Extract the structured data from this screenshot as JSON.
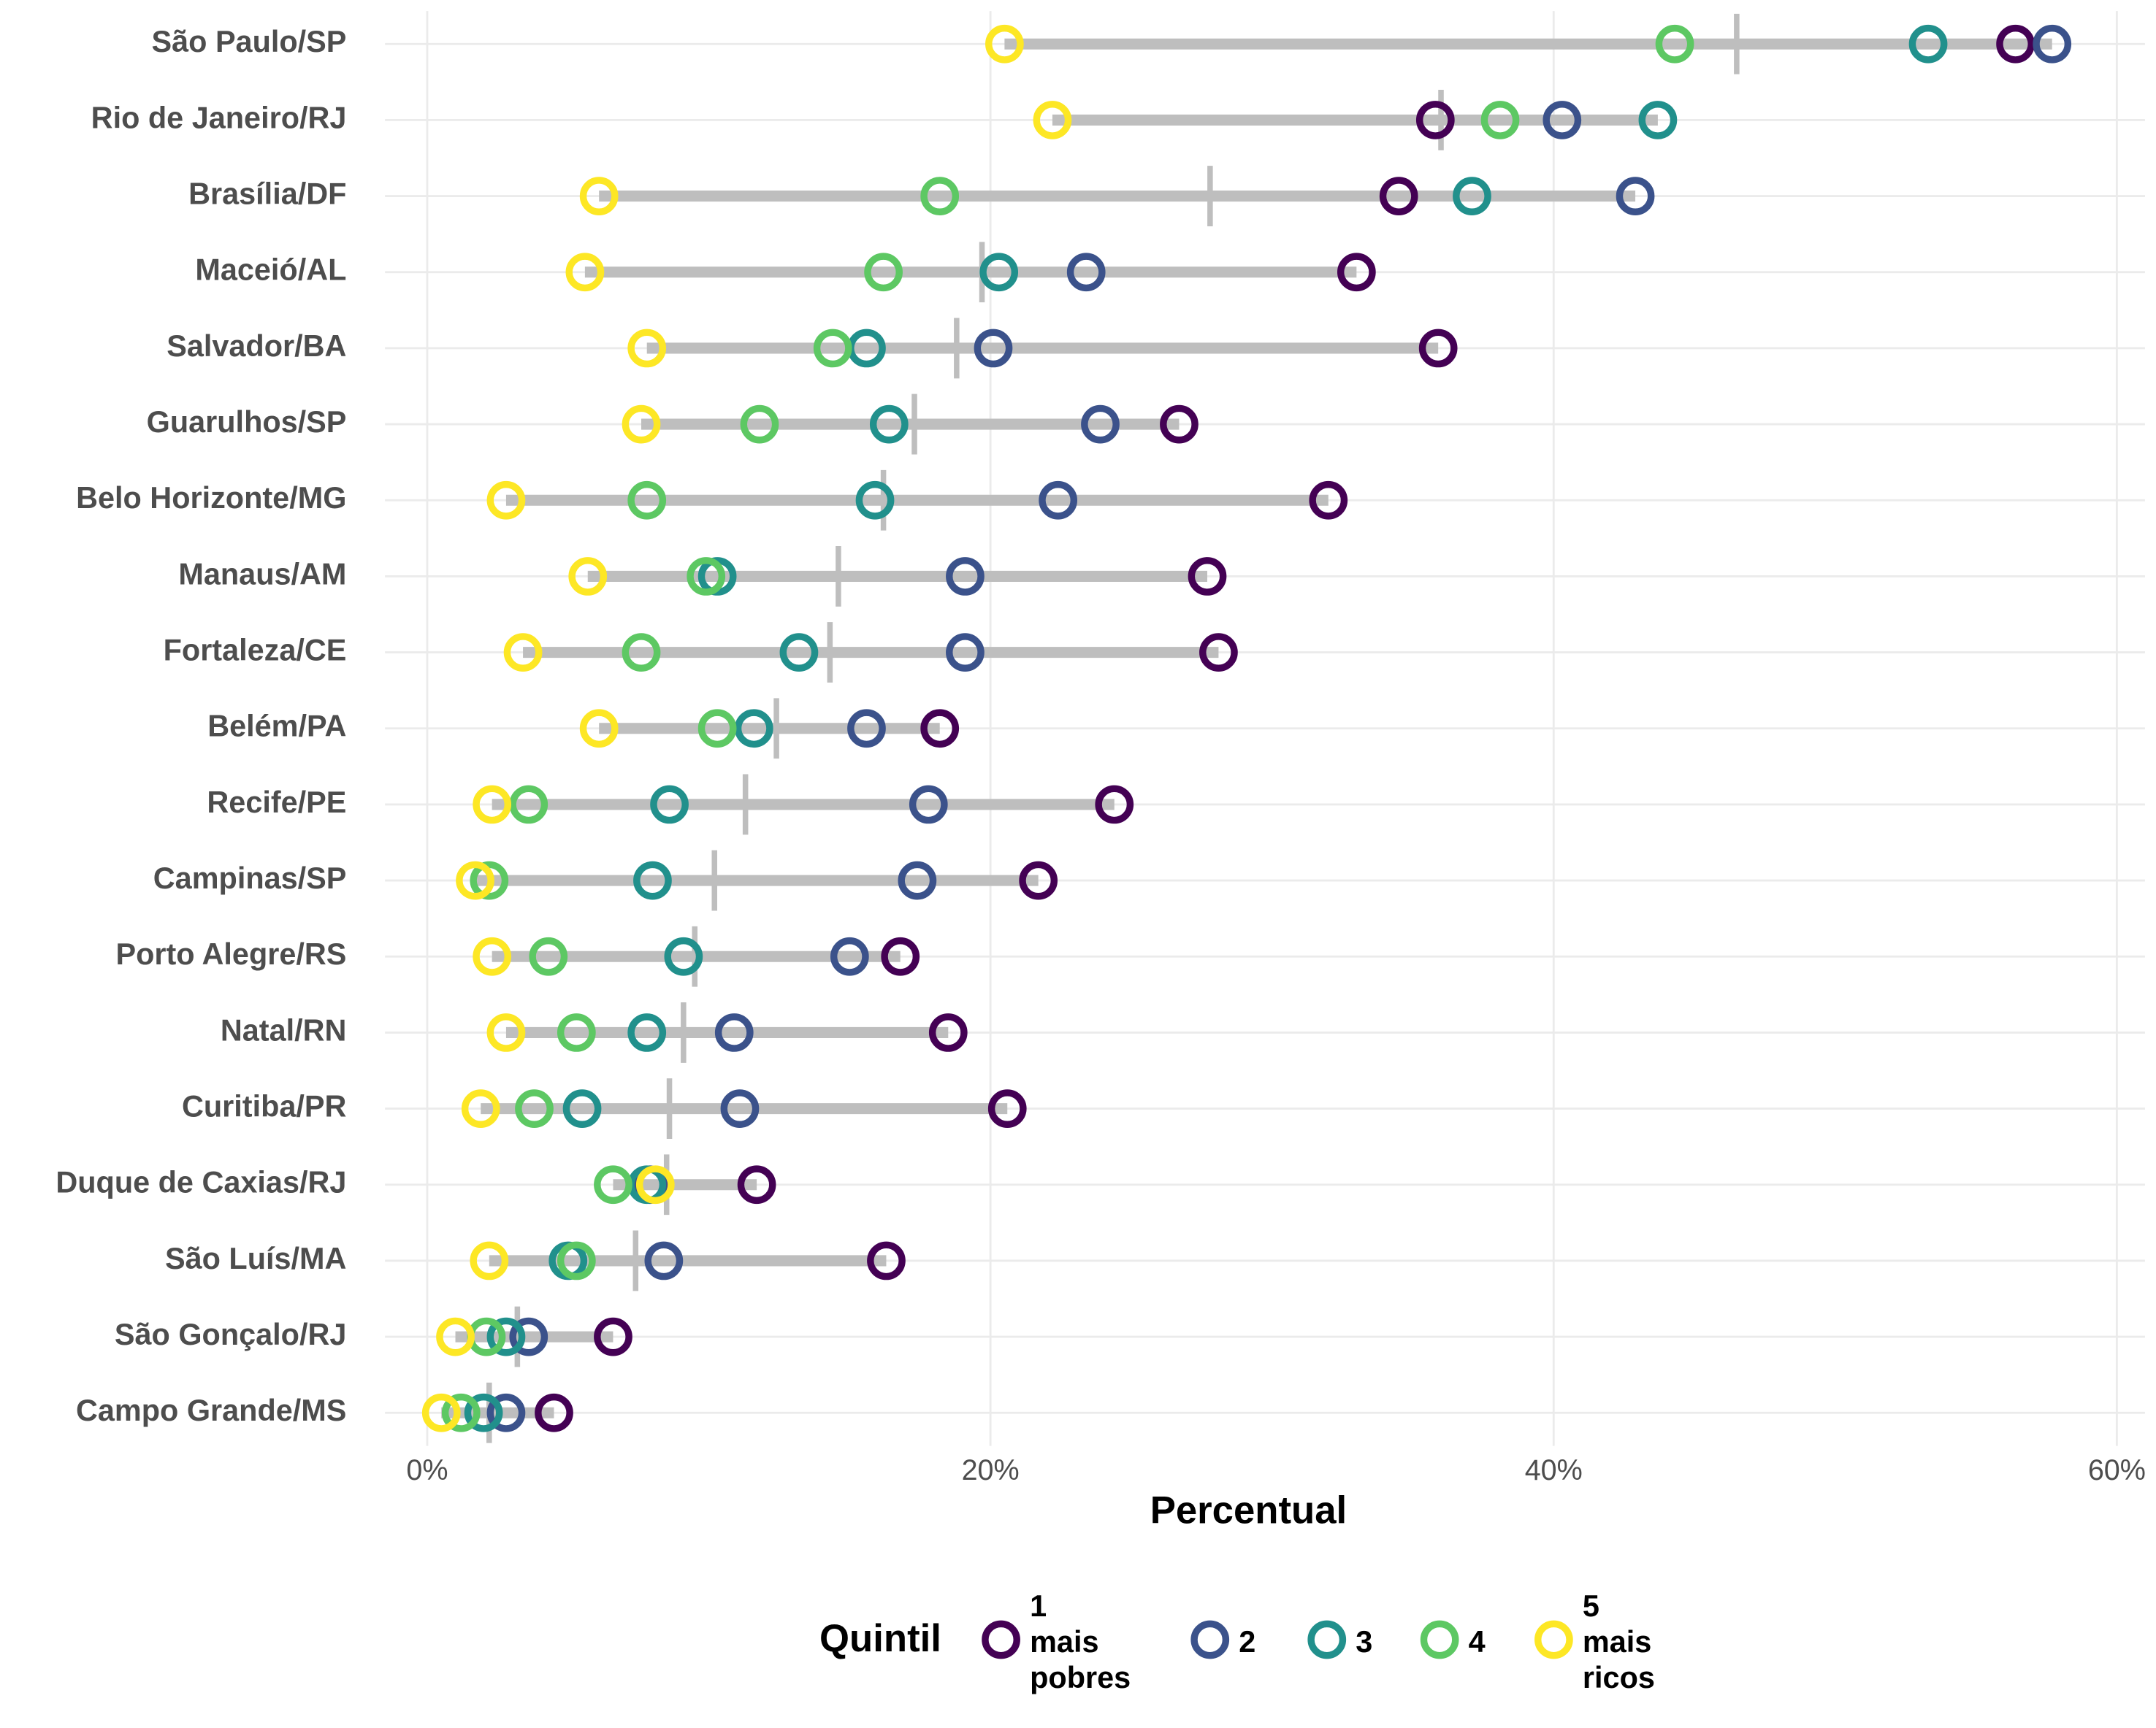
{
  "chart_data": {
    "type": "dumbbell",
    "x_label": "Percentual",
    "legend_title": "Quintil",
    "categories": [
      "São Paulo/SP",
      "Rio de Janeiro/RJ",
      "Brasília/DF",
      "Maceió/AL",
      "Salvador/BA",
      "Guarulhos/SP",
      "Belo Horizonte/MG",
      "Manaus/AM",
      "Fortaleza/CE",
      "Belém/PA",
      "Recife/PE",
      "Campinas/SP",
      "Porto Alegre/RS",
      "Natal/RN",
      "Curitiba/PR",
      "Duque de Caxias/RJ",
      "São Luís/MA",
      "São Gonçalo/RJ",
      "Campo Grande/MS"
    ],
    "series": [
      {
        "name": "1\nmais\npobres",
        "color": "#440154",
        "values": [
          56.4,
          35.8,
          34.5,
          33.0,
          35.9,
          26.7,
          32.0,
          27.7,
          28.1,
          18.2,
          24.4,
          21.7,
          16.8,
          18.5,
          20.6,
          11.7,
          16.3,
          6.6,
          4.5
        ]
      },
      {
        "name": "2",
        "color": "#3b528b",
        "values": [
          57.7,
          40.3,
          42.9,
          23.4,
          20.1,
          23.9,
          22.4,
          19.1,
          19.1,
          15.6,
          17.8,
          17.4,
          15.0,
          10.9,
          11.1,
          7.9,
          8.4,
          3.6,
          2.8
        ]
      },
      {
        "name": "3",
        "color": "#21908c",
        "values": [
          53.3,
          43.7,
          37.1,
          20.3,
          15.6,
          16.4,
          15.9,
          10.3,
          13.2,
          11.6,
          8.6,
          8.0,
          9.1,
          7.8,
          5.5,
          7.8,
          5.0,
          2.8,
          2.0
        ]
      },
      {
        "name": "4",
        "color": "#5dc863",
        "values": [
          44.3,
          38.1,
          18.2,
          16.2,
          14.4,
          11.8,
          7.8,
          9.9,
          7.6,
          10.3,
          3.6,
          2.2,
          4.3,
          5.3,
          3.8,
          6.6,
          5.3,
          2.1,
          1.2
        ]
      },
      {
        "name": "5\nmais\nricos",
        "color": "#fde725",
        "values": [
          20.5,
          22.2,
          6.1,
          5.6,
          7.8,
          7.6,
          2.8,
          5.7,
          3.4,
          6.1,
          2.3,
          1.7,
          2.3,
          2.8,
          1.9,
          8.1,
          2.2,
          1.0,
          0.5
        ]
      }
    ],
    "overall": [
      46.5,
      36.0,
      27.8,
      19.7,
      18.8,
      17.3,
      16.2,
      14.6,
      14.3,
      12.4,
      11.3,
      10.2,
      9.5,
      9.1,
      8.6,
      8.5,
      7.4,
      3.2,
      2.2
    ],
    "range_color": "#bebebe",
    "xlim": [
      -1.5,
      61
    ],
    "xticks": [
      {
        "value": 0,
        "label": "0%"
      },
      {
        "value": 20,
        "label": "20%"
      },
      {
        "value": 40,
        "label": "40%"
      },
      {
        "value": 60,
        "label": "60%"
      }
    ],
    "grid": true
  }
}
